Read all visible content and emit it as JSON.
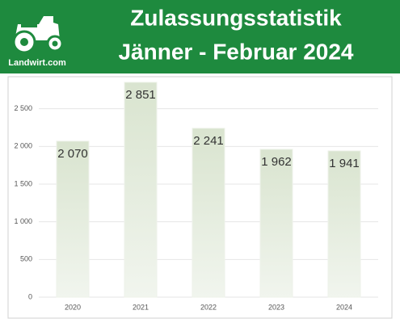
{
  "logo": {
    "text": "Landwirt.com"
  },
  "chart_data": {
    "type": "bar",
    "title": [
      "Zulassungsstatistik",
      "Jänner - Februar 2024"
    ],
    "categories": [
      "2020",
      "2021",
      "2022",
      "2023",
      "2024"
    ],
    "values": [
      2070,
      2851,
      2241,
      1962,
      1941
    ],
    "value_labels": [
      "2 070",
      "2 851",
      "2 241",
      "1 962",
      "1 941"
    ],
    "color": "#e3ebdc",
    "ylim": [
      0,
      3000
    ],
    "yticks": [
      0,
      500,
      {
        "value": 1000,
        "label": "1 000"
      },
      {
        "value": 1500,
        "label": "1 500"
      },
      {
        "value": 2000,
        "label": "2 000"
      },
      {
        "value": 2500,
        "label": "2 500"
      }
    ],
    "grid": true
  }
}
